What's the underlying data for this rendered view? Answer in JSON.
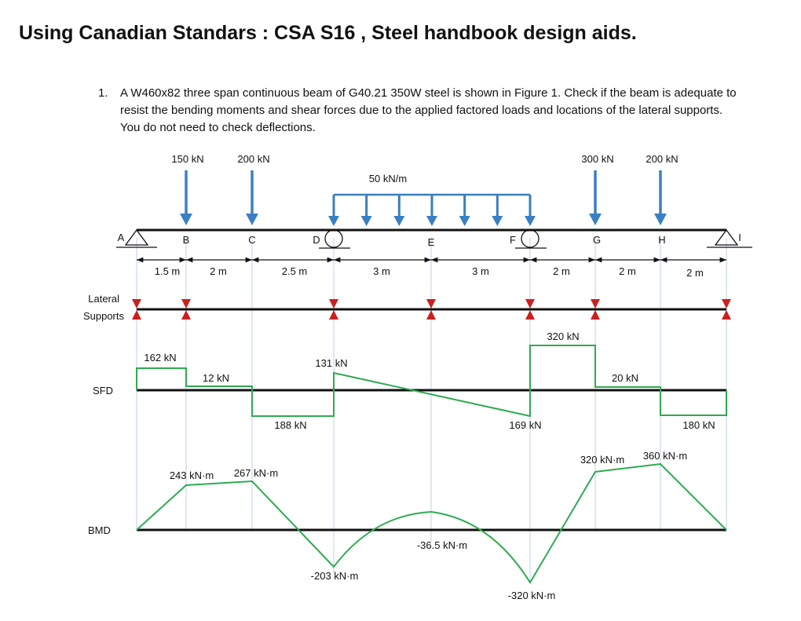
{
  "page": {
    "title": "Using Canadian Standars : CSA S16 , Steel handbook design aids.",
    "question_number": "1.",
    "question_text": "A W460x82 three span continuous beam of G40.21 350W steel is shown in Figure 1.  Check if the beam is adequate to resist the bending moments and shear forces due to the applied factored loads and locations of the lateral supports.  You do not need to check deflections."
  },
  "colors": {
    "load": "#3a7fc1",
    "diagram": "#2eaa50",
    "support_arrow": "#cc1f1f",
    "line": "#111111",
    "gridline": "#bcd2ea"
  },
  "figure": {
    "point_loads": [
      {
        "label": "150 kN",
        "at": "B"
      },
      {
        "label": "200 kN",
        "at": "C"
      },
      {
        "label": "300 kN",
        "at": "G"
      },
      {
        "label": "200 kN",
        "at": "H"
      }
    ],
    "distributed_load": {
      "label": "50 kN/m",
      "from": "D",
      "to": "F"
    },
    "points": [
      {
        "id": "A",
        "label": "A",
        "support": "pin"
      },
      {
        "id": "B",
        "label": "B"
      },
      {
        "id": "C",
        "label": "C"
      },
      {
        "id": "D",
        "label": "D",
        "support": "roller"
      },
      {
        "id": "E",
        "label": "E"
      },
      {
        "id": "F",
        "label": "F",
        "support": "roller"
      },
      {
        "id": "G",
        "label": "G"
      },
      {
        "id": "H",
        "label": "H"
      },
      {
        "id": "I",
        "label": "I",
        "support": "pin"
      }
    ],
    "spans": [
      "1.5 m",
      "2 m",
      "2.5 m",
      "3 m",
      "3 m",
      "2 m",
      "2 m",
      "2 m"
    ],
    "lateral_supports_label_line1": "Lateral",
    "lateral_supports_label_line2": "Supports",
    "lateral_supports_at": [
      "A",
      "B",
      "D",
      "E",
      "F",
      "G",
      "I"
    ],
    "sfd_label": "SFD",
    "sfd_values": [
      "162 kN",
      "12 kN",
      "188 kN",
      "131 kN",
      "169 kN",
      "320 kN",
      "20 kN",
      "180 kN"
    ],
    "bmd_label": "BMD",
    "bmd_values": [
      "243 kN·m",
      "267 kN·m",
      "-203 kN·m",
      "-36.5 kN·m",
      "-320 kN·m",
      "320 kN·m",
      "360 kN·m"
    ]
  }
}
